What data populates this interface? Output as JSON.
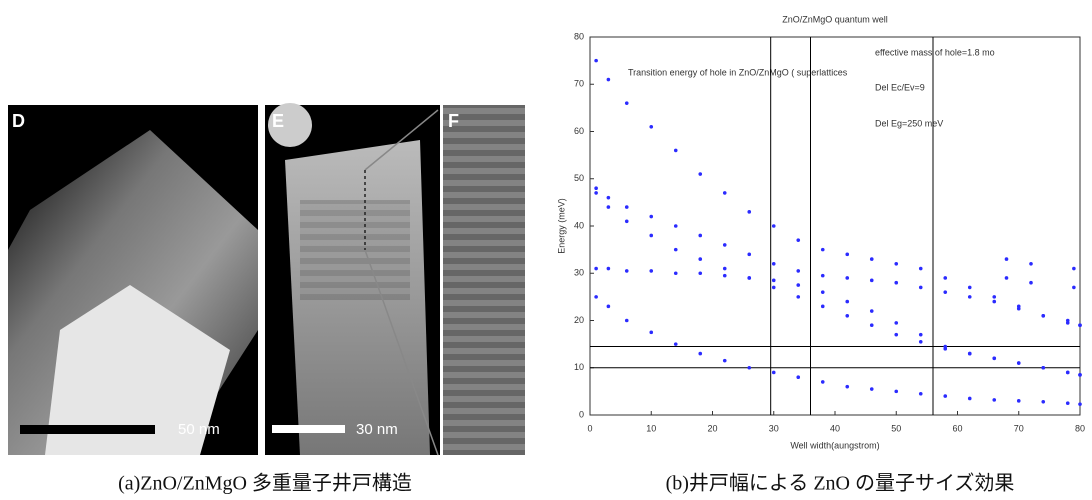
{
  "panel_a": {
    "labels": [
      "D",
      "E",
      "F"
    ],
    "scale_bars": [
      "50 nm",
      "30 nm"
    ],
    "caption": "(a)ZnO/ZnMgO 多重量子井戸構造"
  },
  "chart_data": {
    "type": "scatter",
    "title": "ZnO/ZnMgO quantum well",
    "annotations": [
      "effective mass of hole=1.8 mo",
      "Transition energy of hole in ZnO/ZnMgO ( superlattices",
      "Del Ec/Ev=9",
      "Del Eg=250 meV"
    ],
    "x_label": "Well width(aungstrom)",
    "y_label": "Energy (meV)",
    "xlim": [
      0,
      80
    ],
    "ylim": [
      0,
      80
    ],
    "xticks": [
      0,
      10,
      20,
      30,
      40,
      50,
      60,
      70,
      80
    ],
    "yticks": [
      0,
      10,
      20,
      30,
      40,
      50,
      60,
      70,
      80
    ],
    "vlines": [
      29.5,
      36,
      56
    ],
    "hlines": [
      10,
      14.5
    ],
    "series": [
      {
        "color": "#2b2bff",
        "x": [
          1,
          3,
          6,
          10,
          14,
          18,
          22,
          26,
          30,
          34,
          38,
          42,
          46,
          50,
          54,
          58,
          62,
          66,
          70,
          74,
          78,
          80
        ],
        "values": [
          75,
          71,
          66,
          61,
          56,
          51,
          47,
          43,
          40,
          37,
          35,
          34,
          33,
          32,
          31,
          29,
          27,
          25,
          23,
          21,
          20,
          19
        ]
      },
      {
        "color": "#2b2bff",
        "x": [
          1,
          3,
          6,
          10,
          14,
          18,
          22,
          26,
          30,
          34,
          38,
          42,
          46,
          50,
          54,
          58,
          62,
          66,
          70,
          74,
          78,
          80
        ],
        "values": [
          48,
          46,
          44,
          42,
          40,
          38,
          36,
          34,
          32,
          30.5,
          29.5,
          29,
          28.5,
          28,
          27,
          26,
          25,
          24,
          22.5,
          21,
          19.5,
          19
        ]
      },
      {
        "color": "#2b2bff",
        "x": [
          1,
          3,
          6,
          10,
          14,
          18,
          22,
          26,
          30,
          34,
          38,
          42,
          46,
          50,
          54,
          58,
          62,
          66,
          70,
          74,
          78,
          80
        ],
        "values": [
          47,
          44,
          41,
          38,
          35,
          33,
          31,
          29,
          27,
          25,
          23,
          21,
          19,
          17,
          15.5,
          14,
          13,
          12,
          11,
          10,
          9,
          8.5
        ]
      },
      {
        "color": "#2b2bff",
        "x": [
          1,
          3,
          6,
          10,
          14,
          18,
          22,
          26,
          30,
          34,
          38,
          42,
          46,
          50,
          54,
          58,
          62,
          66,
          70,
          74,
          78,
          80
        ],
        "values": [
          31,
          31,
          30.5,
          30.5,
          30,
          30,
          29.5,
          29,
          28.5,
          27.5,
          26,
          24,
          22,
          19.5,
          17,
          14.5,
          13,
          12,
          11,
          10,
          9,
          8.5
        ]
      },
      {
        "color": "#2b2bff",
        "x": [
          1,
          3,
          6,
          10,
          14,
          18,
          22,
          26,
          30,
          34,
          38,
          42,
          46,
          50,
          54,
          58,
          62,
          66,
          70,
          74,
          78,
          80
        ],
        "values": [
          25,
          23,
          20,
          17.5,
          15,
          13,
          11.5,
          10,
          9,
          8,
          7,
          6,
          5.5,
          5,
          4.5,
          4,
          3.5,
          3.2,
          3,
          2.8,
          2.5,
          2.3
        ]
      },
      {
        "color": "#2b2bff",
        "x": [
          68,
          68,
          72,
          72,
          79,
          79
        ],
        "values": [
          33,
          29,
          32,
          28,
          31,
          27
        ]
      }
    ],
    "caption": "(b)井戸幅による ZnO の量子サイズ効果"
  }
}
